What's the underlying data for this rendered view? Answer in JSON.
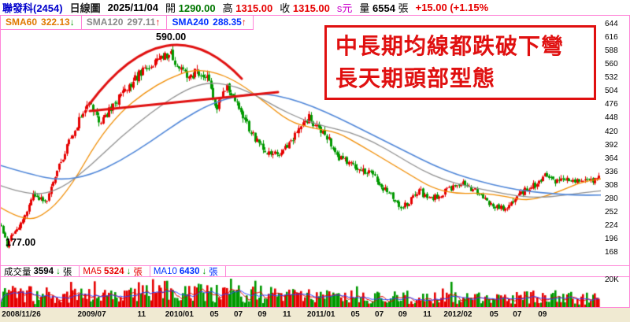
{
  "header": {
    "stock": "聯發科(2454)",
    "period": "日線圖",
    "date": "2025/11/04",
    "open_label": "開",
    "open": "1290.00",
    "high_label": "高",
    "high": "1315.00",
    "close_label": "收",
    "close": "1315.00",
    "unit": "s元",
    "volume_label": "量",
    "volume": "6554",
    "volume_unit": "張",
    "change": "+15.00 (+1.15%"
  },
  "indicators": [
    {
      "name": "SMA60",
      "value": "322.13",
      "arrow": "↓"
    },
    {
      "name": "SMA120",
      "value": "297.11",
      "arrow": "↑"
    },
    {
      "name": "SMA240",
      "value": "288.35",
      "arrow": "↑"
    }
  ],
  "annotation": {
    "line1": "中長期均線都跌破下彎",
    "line2": "長天期頭部型態"
  },
  "volume_header": [
    {
      "label": "成交量",
      "value": "3594",
      "arrow": "↓",
      "unit": "張"
    },
    {
      "label": "MA5",
      "value": "5324",
      "arrow": "↓",
      "unit": "張"
    },
    {
      "label": "MA10",
      "value": "6430",
      "arrow": "↓",
      "unit": "張"
    }
  ],
  "colors": {
    "up": "#e60000",
    "down": "#009900",
    "frame_pink": "#ff84d8",
    "annotation_red": "#e01010",
    "sma60": "#f08c00",
    "sma120": "#909090",
    "sma240": "#4f86d8"
  },
  "chart_data": {
    "type": "candlestick",
    "title": "聯發科(2454) 日線圖",
    "peak_label": "590.00",
    "low_label": "177.00",
    "volume_axis_label": "20K",
    "price_axis_ticks": [
      644,
      616,
      588,
      560,
      532,
      504,
      476,
      448,
      420,
      392,
      364,
      336,
      308,
      280,
      252,
      224,
      196,
      168
    ],
    "price_min": 142,
    "price_max": 662,
    "x_labels": [
      {
        "text": "2008/11/26",
        "pos": 0.003,
        "align": "left"
      },
      {
        "text": "2009/07",
        "pos": 0.153
      },
      {
        "text": "11",
        "pos": 0.236
      },
      {
        "text": "2010/01",
        "pos": 0.299
      },
      {
        "text": "05",
        "pos": 0.357
      },
      {
        "text": "07",
        "pos": 0.397
      },
      {
        "text": "09",
        "pos": 0.437
      },
      {
        "text": "11",
        "pos": 0.478
      },
      {
        "text": "2011/01",
        "pos": 0.535
      },
      {
        "text": "05",
        "pos": 0.592
      },
      {
        "text": "07",
        "pos": 0.632
      },
      {
        "text": "09",
        "pos": 0.671
      },
      {
        "text": "11",
        "pos": 0.712
      },
      {
        "text": "2012/02",
        "pos": 0.763
      },
      {
        "text": "05",
        "pos": 0.823
      },
      {
        "text": "07",
        "pos": 0.862
      },
      {
        "text": "09",
        "pos": 0.904
      }
    ],
    "candle_count": 300,
    "seed": 20101,
    "up_color": "#e60000",
    "down_color": "#009900",
    "sma_colors": {
      "sma60": "#f08c00",
      "sma120": "#909090",
      "sma240": "#4f86d8"
    },
    "trend_color": "#e01010",
    "price_path": [
      [
        0.0,
        225
      ],
      [
        0.01,
        180
      ],
      [
        0.018,
        205
      ],
      [
        0.035,
        235
      ],
      [
        0.055,
        290
      ],
      [
        0.075,
        275
      ],
      [
        0.095,
        345
      ],
      [
        0.115,
        400
      ],
      [
        0.135,
        455
      ],
      [
        0.15,
        478
      ],
      [
        0.165,
        440
      ],
      [
        0.185,
        470
      ],
      [
        0.2,
        500
      ],
      [
        0.215,
        515
      ],
      [
        0.23,
        540
      ],
      [
        0.25,
        555
      ],
      [
        0.265,
        572
      ],
      [
        0.283,
        585
      ],
      [
        0.295,
        555
      ],
      [
        0.31,
        535
      ],
      [
        0.33,
        545
      ],
      [
        0.345,
        540
      ],
      [
        0.36,
        470
      ],
      [
        0.378,
        515
      ],
      [
        0.395,
        480
      ],
      [
        0.41,
        440
      ],
      [
        0.425,
        405
      ],
      [
        0.445,
        380
      ],
      [
        0.465,
        368
      ],
      [
        0.48,
        395
      ],
      [
        0.5,
        430
      ],
      [
        0.515,
        450
      ],
      [
        0.53,
        425
      ],
      [
        0.548,
        405
      ],
      [
        0.565,
        368
      ],
      [
        0.585,
        352
      ],
      [
        0.605,
        342
      ],
      [
        0.622,
        330
      ],
      [
        0.64,
        302
      ],
      [
        0.655,
        287
      ],
      [
        0.67,
        262
      ],
      [
        0.685,
        277
      ],
      [
        0.7,
        297
      ],
      [
        0.715,
        277
      ],
      [
        0.73,
        287
      ],
      [
        0.75,
        300
      ],
      [
        0.77,
        312
      ],
      [
        0.79,
        300
      ],
      [
        0.805,
        282
      ],
      [
        0.825,
        267
      ],
      [
        0.84,
        258
      ],
      [
        0.858,
        277
      ],
      [
        0.875,
        297
      ],
      [
        0.895,
        312
      ],
      [
        0.912,
        332
      ],
      [
        0.93,
        316
      ],
      [
        0.95,
        322
      ],
      [
        0.97,
        317
      ],
      [
        1.0,
        322
      ]
    ],
    "sma60_path": [
      [
        0,
        262
      ],
      [
        0.04,
        232
      ],
      [
        0.08,
        252
      ],
      [
        0.12,
        312
      ],
      [
        0.16,
        400
      ],
      [
        0.2,
        462
      ],
      [
        0.24,
        502
      ],
      [
        0.28,
        532
      ],
      [
        0.32,
        550
      ],
      [
        0.36,
        544
      ],
      [
        0.4,
        520
      ],
      [
        0.44,
        482
      ],
      [
        0.48,
        442
      ],
      [
        0.52,
        427
      ],
      [
        0.56,
        420
      ],
      [
        0.6,
        392
      ],
      [
        0.64,
        362
      ],
      [
        0.68,
        332
      ],
      [
        0.72,
        302
      ],
      [
        0.76,
        291
      ],
      [
        0.8,
        293
      ],
      [
        0.84,
        286
      ],
      [
        0.88,
        276
      ],
      [
        0.92,
        291
      ],
      [
        0.95,
        306
      ],
      [
        0.97,
        316
      ],
      [
        1.0,
        322.13
      ]
    ],
    "sma120_path": [
      [
        0,
        308
      ],
      [
        0.05,
        286
      ],
      [
        0.1,
        300
      ],
      [
        0.15,
        350
      ],
      [
        0.2,
        410
      ],
      [
        0.25,
        460
      ],
      [
        0.3,
        503
      ],
      [
        0.34,
        523
      ],
      [
        0.38,
        519
      ],
      [
        0.42,
        500
      ],
      [
        0.46,
        471
      ],
      [
        0.5,
        447
      ],
      [
        0.54,
        431
      ],
      [
        0.58,
        420
      ],
      [
        0.62,
        400
      ],
      [
        0.66,
        371
      ],
      [
        0.7,
        341
      ],
      [
        0.74,
        319
      ],
      [
        0.78,
        306
      ],
      [
        0.82,
        296
      ],
      [
        0.86,
        286
      ],
      [
        0.9,
        283
      ],
      [
        0.94,
        288
      ],
      [
        0.97,
        293
      ],
      [
        1.0,
        297.11
      ]
    ],
    "sma240_path": [
      [
        0,
        350
      ],
      [
        0.05,
        331
      ],
      [
        0.1,
        319
      ],
      [
        0.15,
        330
      ],
      [
        0.2,
        360
      ],
      [
        0.25,
        400
      ],
      [
        0.3,
        444
      ],
      [
        0.35,
        479
      ],
      [
        0.4,
        497
      ],
      [
        0.44,
        500
      ],
      [
        0.48,
        490
      ],
      [
        0.52,
        473
      ],
      [
        0.56,
        451
      ],
      [
        0.6,
        426
      ],
      [
        0.64,
        401
      ],
      [
        0.68,
        376
      ],
      [
        0.72,
        351
      ],
      [
        0.76,
        331
      ],
      [
        0.8,
        316
      ],
      [
        0.84,
        304
      ],
      [
        0.88,
        296
      ],
      [
        0.92,
        291
      ],
      [
        0.96,
        288
      ],
      [
        1.0,
        288.35
      ]
    ],
    "volume_path": [
      [
        0,
        0.45
      ],
      [
        0.03,
        0.6
      ],
      [
        0.06,
        0.35
      ],
      [
        0.1,
        0.5
      ],
      [
        0.14,
        0.6
      ],
      [
        0.18,
        0.5
      ],
      [
        0.22,
        0.55
      ],
      [
        0.26,
        0.6
      ],
      [
        0.3,
        0.5
      ],
      [
        0.34,
        0.55
      ],
      [
        0.38,
        0.45
      ],
      [
        0.42,
        0.5
      ],
      [
        0.46,
        0.4
      ],
      [
        0.5,
        0.45
      ],
      [
        0.54,
        0.4
      ],
      [
        0.58,
        0.38
      ],
      [
        0.62,
        0.33
      ],
      [
        0.66,
        0.38
      ],
      [
        0.7,
        0.33
      ],
      [
        0.74,
        0.3
      ],
      [
        0.78,
        0.35
      ],
      [
        0.82,
        0.3
      ],
      [
        0.86,
        0.33
      ],
      [
        0.9,
        0.4
      ],
      [
        0.94,
        0.33
      ],
      [
        1.0,
        0.3
      ]
    ],
    "trendlines": {
      "arc": {
        "from": [
          112,
          113
        ],
        "control": [
          211,
          -20
        ],
        "to": [
          306,
          80
        ]
      },
      "neckline": {
        "from": [
          113,
          121
        ],
        "to": [
          352,
          97
        ]
      }
    }
  }
}
